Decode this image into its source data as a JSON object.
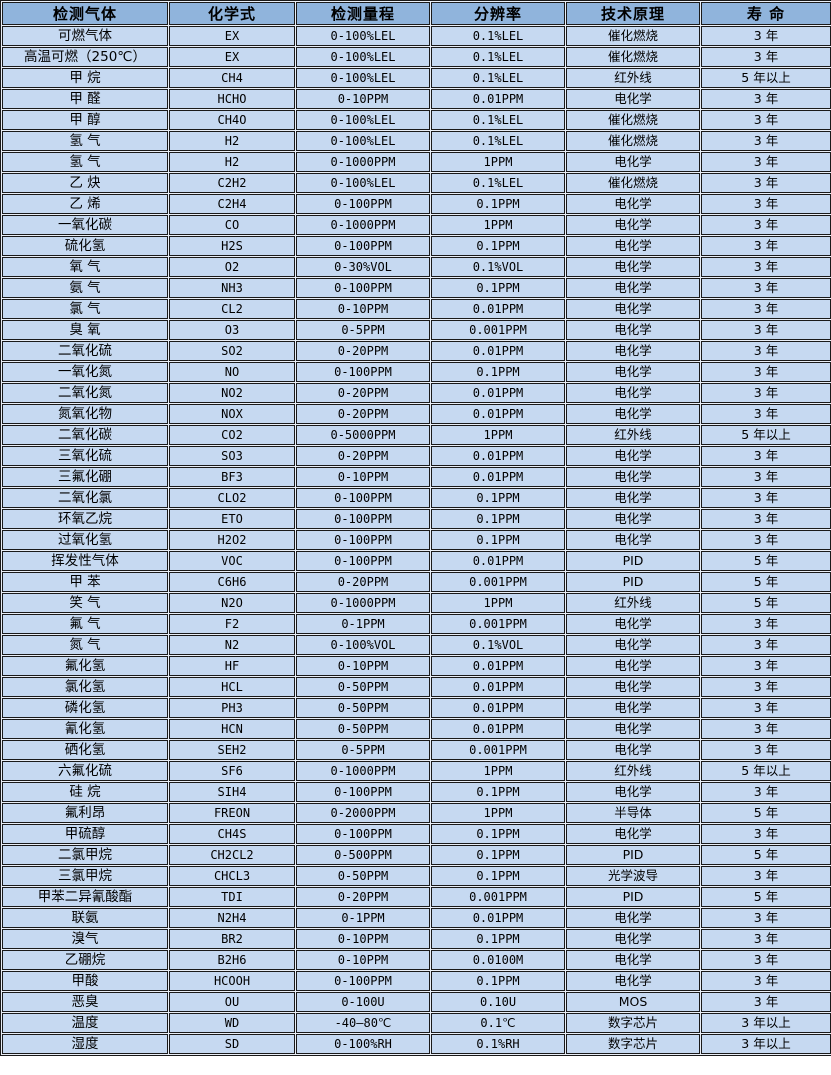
{
  "colors": {
    "header_bg": "#90b4dc",
    "row_bg": "#c6d9f1",
    "border": "#1a1a1a",
    "grid_gap": "#e9eef6"
  },
  "table": {
    "headers": [
      "检测气体",
      "化学式",
      "检测量程",
      "分辨率",
      "技术原理",
      "寿 命"
    ],
    "rows": [
      [
        "可燃气体",
        "EX",
        "0-100%LEL",
        "0.1%LEL",
        "催化燃烧",
        "3 年"
      ],
      [
        "高温可燃（250℃）",
        "EX",
        "0-100%LEL",
        "0.1%LEL",
        "催化燃烧",
        "3 年"
      ],
      [
        "甲 烷",
        "CH4",
        "0-100%LEL",
        "0.1%LEL",
        "红外线",
        "5 年以上"
      ],
      [
        "甲 醛",
        "HCHO",
        "0-10PPM",
        "0.01PPM",
        "电化学",
        "3 年"
      ],
      [
        "甲 醇",
        "CH4O",
        "0-100%LEL",
        "0.1%LEL",
        "催化燃烧",
        "3 年"
      ],
      [
        "氢 气",
        "H2",
        "0-100%LEL",
        "0.1%LEL",
        "催化燃烧",
        "3 年"
      ],
      [
        "氢 气",
        "H2",
        "0-1000PPM",
        "1PPM",
        "电化学",
        "3 年"
      ],
      [
        "乙 炔",
        "C2H2",
        "0-100%LEL",
        "0.1%LEL",
        "催化燃烧",
        "3 年"
      ],
      [
        "乙 烯",
        "C2H4",
        "0-100PPM",
        "0.1PPM",
        "电化学",
        "3 年"
      ],
      [
        "一氧化碳",
        "CO",
        "0-1000PPM",
        "1PPM",
        "电化学",
        "3 年"
      ],
      [
        "硫化氢",
        "H2S",
        "0-100PPM",
        "0.1PPM",
        "电化学",
        "3 年"
      ],
      [
        "氧 气",
        "O2",
        "0-30%VOL",
        "0.1%VOL",
        "电化学",
        "3 年"
      ],
      [
        "氨 气",
        "NH3",
        "0-100PPM",
        "0.1PPM",
        "电化学",
        "3 年"
      ],
      [
        "氯 气",
        "CL2",
        "0-10PPM",
        "0.01PPM",
        "电化学",
        "3 年"
      ],
      [
        "臭 氧",
        "O3",
        "0-5PPM",
        "0.001PPM",
        "电化学",
        "3 年"
      ],
      [
        "二氧化硫",
        "SO2",
        "0-20PPM",
        "0.01PPM",
        "电化学",
        "3 年"
      ],
      [
        "一氧化氮",
        "NO",
        "0-100PPM",
        "0.1PPM",
        "电化学",
        "3 年"
      ],
      [
        "二氧化氮",
        "NO2",
        "0-20PPM",
        "0.01PPM",
        "电化学",
        "3 年"
      ],
      [
        "氮氧化物",
        "NOX",
        "0-20PPM",
        "0.01PPM",
        "电化学",
        "3 年"
      ],
      [
        "二氧化碳",
        "CO2",
        "0-5000PPM",
        "1PPM",
        "红外线",
        "5 年以上"
      ],
      [
        "三氧化硫",
        "SO3",
        "0-20PPM",
        "0.01PPM",
        "电化学",
        "3 年"
      ],
      [
        "三氟化硼",
        "BF3",
        "0-10PPM",
        "0.01PPM",
        "电化学",
        "3 年"
      ],
      [
        "二氧化氯",
        "CLO2",
        "0-100PPM",
        "0.1PPM",
        "电化学",
        "3 年"
      ],
      [
        "环氧乙烷",
        "ETO",
        "0-100PPM",
        "0.1PPM",
        "电化学",
        "3 年"
      ],
      [
        "过氧化氢",
        "H2O2",
        "0-100PPM",
        "0.1PPM",
        "电化学",
        "3 年"
      ],
      [
        "挥发性气体",
        "VOC",
        "0-100PPM",
        "0.01PPM",
        "PID",
        "5 年"
      ],
      [
        "甲 苯",
        "C6H6",
        "0-20PPM",
        "0.001PPM",
        "PID",
        "5 年"
      ],
      [
        "笑 气",
        "N2O",
        "0-1000PPM",
        "1PPM",
        "红外线",
        "5 年"
      ],
      [
        "氟 气",
        "F2",
        "0-1PPM",
        "0.001PPM",
        "电化学",
        "3 年"
      ],
      [
        "氮 气",
        "N2",
        "0-100%VOL",
        "0.1%VOL",
        "电化学",
        "3 年"
      ],
      [
        "氟化氢",
        "HF",
        "0-10PPM",
        "0.01PPM",
        "电化学",
        "3 年"
      ],
      [
        "氯化氢",
        "HCL",
        "0-50PPM",
        "0.01PPM",
        "电化学",
        "3 年"
      ],
      [
        "磷化氢",
        "PH3",
        "0-50PPM",
        "0.01PPM",
        "电化学",
        "3 年"
      ],
      [
        "氰化氢",
        "HCN",
        "0-50PPM",
        "0.01PPM",
        "电化学",
        "3 年"
      ],
      [
        "硒化氢",
        "SEH2",
        "0-5PPM",
        "0.001PPM",
        "电化学",
        "3 年"
      ],
      [
        "六氟化硫",
        "SF6",
        "0-1000PPM",
        "1PPM",
        "红外线",
        "5 年以上"
      ],
      [
        "硅 烷",
        "SIH4",
        "0-100PPM",
        "0.1PPM",
        "电化学",
        "3 年"
      ],
      [
        "氟利昂",
        "FREON",
        "0-2000PPM",
        "1PPM",
        "半导体",
        "5 年"
      ],
      [
        "甲硫醇",
        "CH4S",
        "0-100PPM",
        "0.1PPM",
        "电化学",
        "3 年"
      ],
      [
        "二氯甲烷",
        "CH2CL2",
        "0-500PPM",
        "0.1PPM",
        "PID",
        "5 年"
      ],
      [
        "三氯甲烷",
        "CHCL3",
        "0-50PPM",
        "0.1PPM",
        "光学波导",
        "3 年"
      ],
      [
        "甲苯二异氰酸酯",
        "TDI",
        "0-20PPM",
        "0.001PPM",
        "PID",
        "5 年"
      ],
      [
        "联氨",
        "N2H4",
        "0-1PPM",
        "0.01PPM",
        "电化学",
        "3 年"
      ],
      [
        "溴气",
        "BR2",
        "0-10PPM",
        "0.1PPM",
        "电化学",
        "3 年"
      ],
      [
        "乙硼烷",
        "B2H6",
        "0-10PPM",
        "0.0100M",
        "电化学",
        "3 年"
      ],
      [
        "甲酸",
        "HCOOH",
        "0-100PPM",
        "0.1PPM",
        "电化学",
        "3 年"
      ],
      [
        "恶臭",
        "OU",
        "0-100U",
        "0.10U",
        "MOS",
        "3 年"
      ],
      [
        "温度",
        "WD",
        "-40—80℃",
        "0.1℃",
        "数字芯片",
        "3 年以上"
      ],
      [
        "湿度",
        "SD",
        "0-100%RH",
        "0.1%RH",
        "数字芯片",
        "3 年以上"
      ]
    ]
  }
}
